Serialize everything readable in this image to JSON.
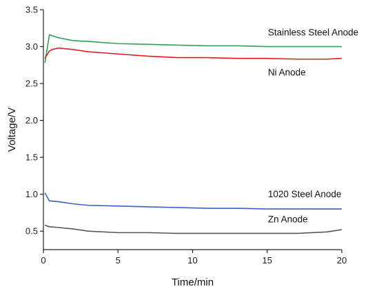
{
  "chart_data": {
    "type": "line",
    "title": "",
    "xlabel": "Time/min",
    "ylabel": "Voltage/V",
    "xlim": [
      0,
      20
    ],
    "ylim": [
      0.25,
      3.5
    ],
    "xticks": [
      0,
      5,
      10,
      15,
      20
    ],
    "yticks": [
      0.5,
      1.0,
      1.5,
      2.0,
      2.5,
      3.0,
      3.5
    ],
    "xtick_labels": [
      "0",
      "5",
      "10",
      "15",
      "20"
    ],
    "ytick_labels": [
      "0.5",
      "1.0",
      "1.5",
      "2.0",
      "2.5",
      "3.0",
      "3.5"
    ],
    "grid": false,
    "legend": "inline labels next to lines",
    "series": [
      {
        "name": "Stainless Steel Anode",
        "color": "#2ca05a",
        "x": [
          0.1,
          0.4,
          1,
          2,
          3,
          5,
          7,
          9,
          11,
          13,
          15,
          17,
          19,
          20
        ],
        "y": [
          2.78,
          3.16,
          3.12,
          3.08,
          3.07,
          3.04,
          3.03,
          3.02,
          3.01,
          3.01,
          3.0,
          3.0,
          3.0,
          3.0
        ]
      },
      {
        "name": "Ni Anode",
        "color": "#e31a1c",
        "x": [
          0.1,
          0.4,
          0.6,
          1,
          2,
          3,
          5,
          7,
          9,
          11,
          13,
          15,
          17,
          19,
          20
        ],
        "y": [
          2.84,
          2.94,
          2.96,
          2.98,
          2.96,
          2.93,
          2.9,
          2.87,
          2.85,
          2.85,
          2.84,
          2.84,
          2.83,
          2.83,
          2.84
        ]
      },
      {
        "name": "1020 Steel Anode",
        "color": "#3a5fcd",
        "x": [
          0.1,
          0.4,
          1,
          2,
          3,
          5,
          7,
          9,
          11,
          13,
          15,
          17,
          19,
          20
        ],
        "y": [
          1.02,
          0.91,
          0.9,
          0.87,
          0.85,
          0.84,
          0.83,
          0.82,
          0.81,
          0.81,
          0.8,
          0.8,
          0.8,
          0.8
        ]
      },
      {
        "name": "Zn Anode",
        "color": "#555555",
        "x": [
          0.1,
          0.4,
          1,
          2,
          3,
          5,
          7,
          9,
          11,
          13,
          15,
          17,
          19,
          20
        ],
        "y": [
          0.58,
          0.56,
          0.55,
          0.53,
          0.5,
          0.48,
          0.48,
          0.47,
          0.47,
          0.47,
          0.47,
          0.47,
          0.49,
          0.52
        ]
      }
    ],
    "labels": [
      {
        "text": "Stainless Steel Anode",
        "series": "Stainless Steel Anode",
        "at_x": 15.05,
        "at_y": 3.15
      },
      {
        "text": "Ni Anode",
        "series": "Ni Anode",
        "at_x": 15.05,
        "at_y": 2.61
      },
      {
        "text": "1020 Steel Anode",
        "series": "1020 Steel Anode",
        "at_x": 15.05,
        "at_y": 0.96
      },
      {
        "text": "Zn Anode",
        "series": "Zn Anode",
        "at_x": 15.05,
        "at_y": 0.62
      }
    ]
  }
}
